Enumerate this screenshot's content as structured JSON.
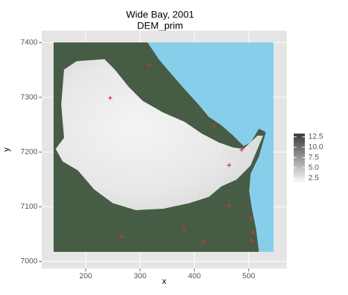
{
  "chart_data": {
    "type": "raster",
    "title": "Wide Bay, 2001",
    "subtitle": "DEM_prim",
    "xlabel": "x",
    "ylabel": "y",
    "xlim": [
      119,
      570
    ],
    "ylim": [
      6987,
      7422
    ],
    "xticks": [
      200,
      300,
      400,
      500
    ],
    "yticks": [
      7000,
      7100,
      7200,
      7300,
      7400
    ],
    "grid": true,
    "points": {
      "color": "#e03030",
      "x": [
        317,
        436,
        487,
        464,
        464,
        505,
        508,
        505,
        245,
        381,
        416,
        266
      ],
      "y": [
        7360,
        7248,
        7204,
        7176,
        7102,
        7079,
        7053,
        7038,
        7299,
        7059,
        7036,
        7045
      ]
    },
    "legend": {
      "lim": [
        1.5,
        13.3
      ],
      "ticks": [
        2.5,
        5.0,
        7.5,
        10.0,
        12.5
      ],
      "labels": [
        "2.5",
        "5.0",
        "7.5",
        "10.0",
        "12.5"
      ]
    }
  }
}
